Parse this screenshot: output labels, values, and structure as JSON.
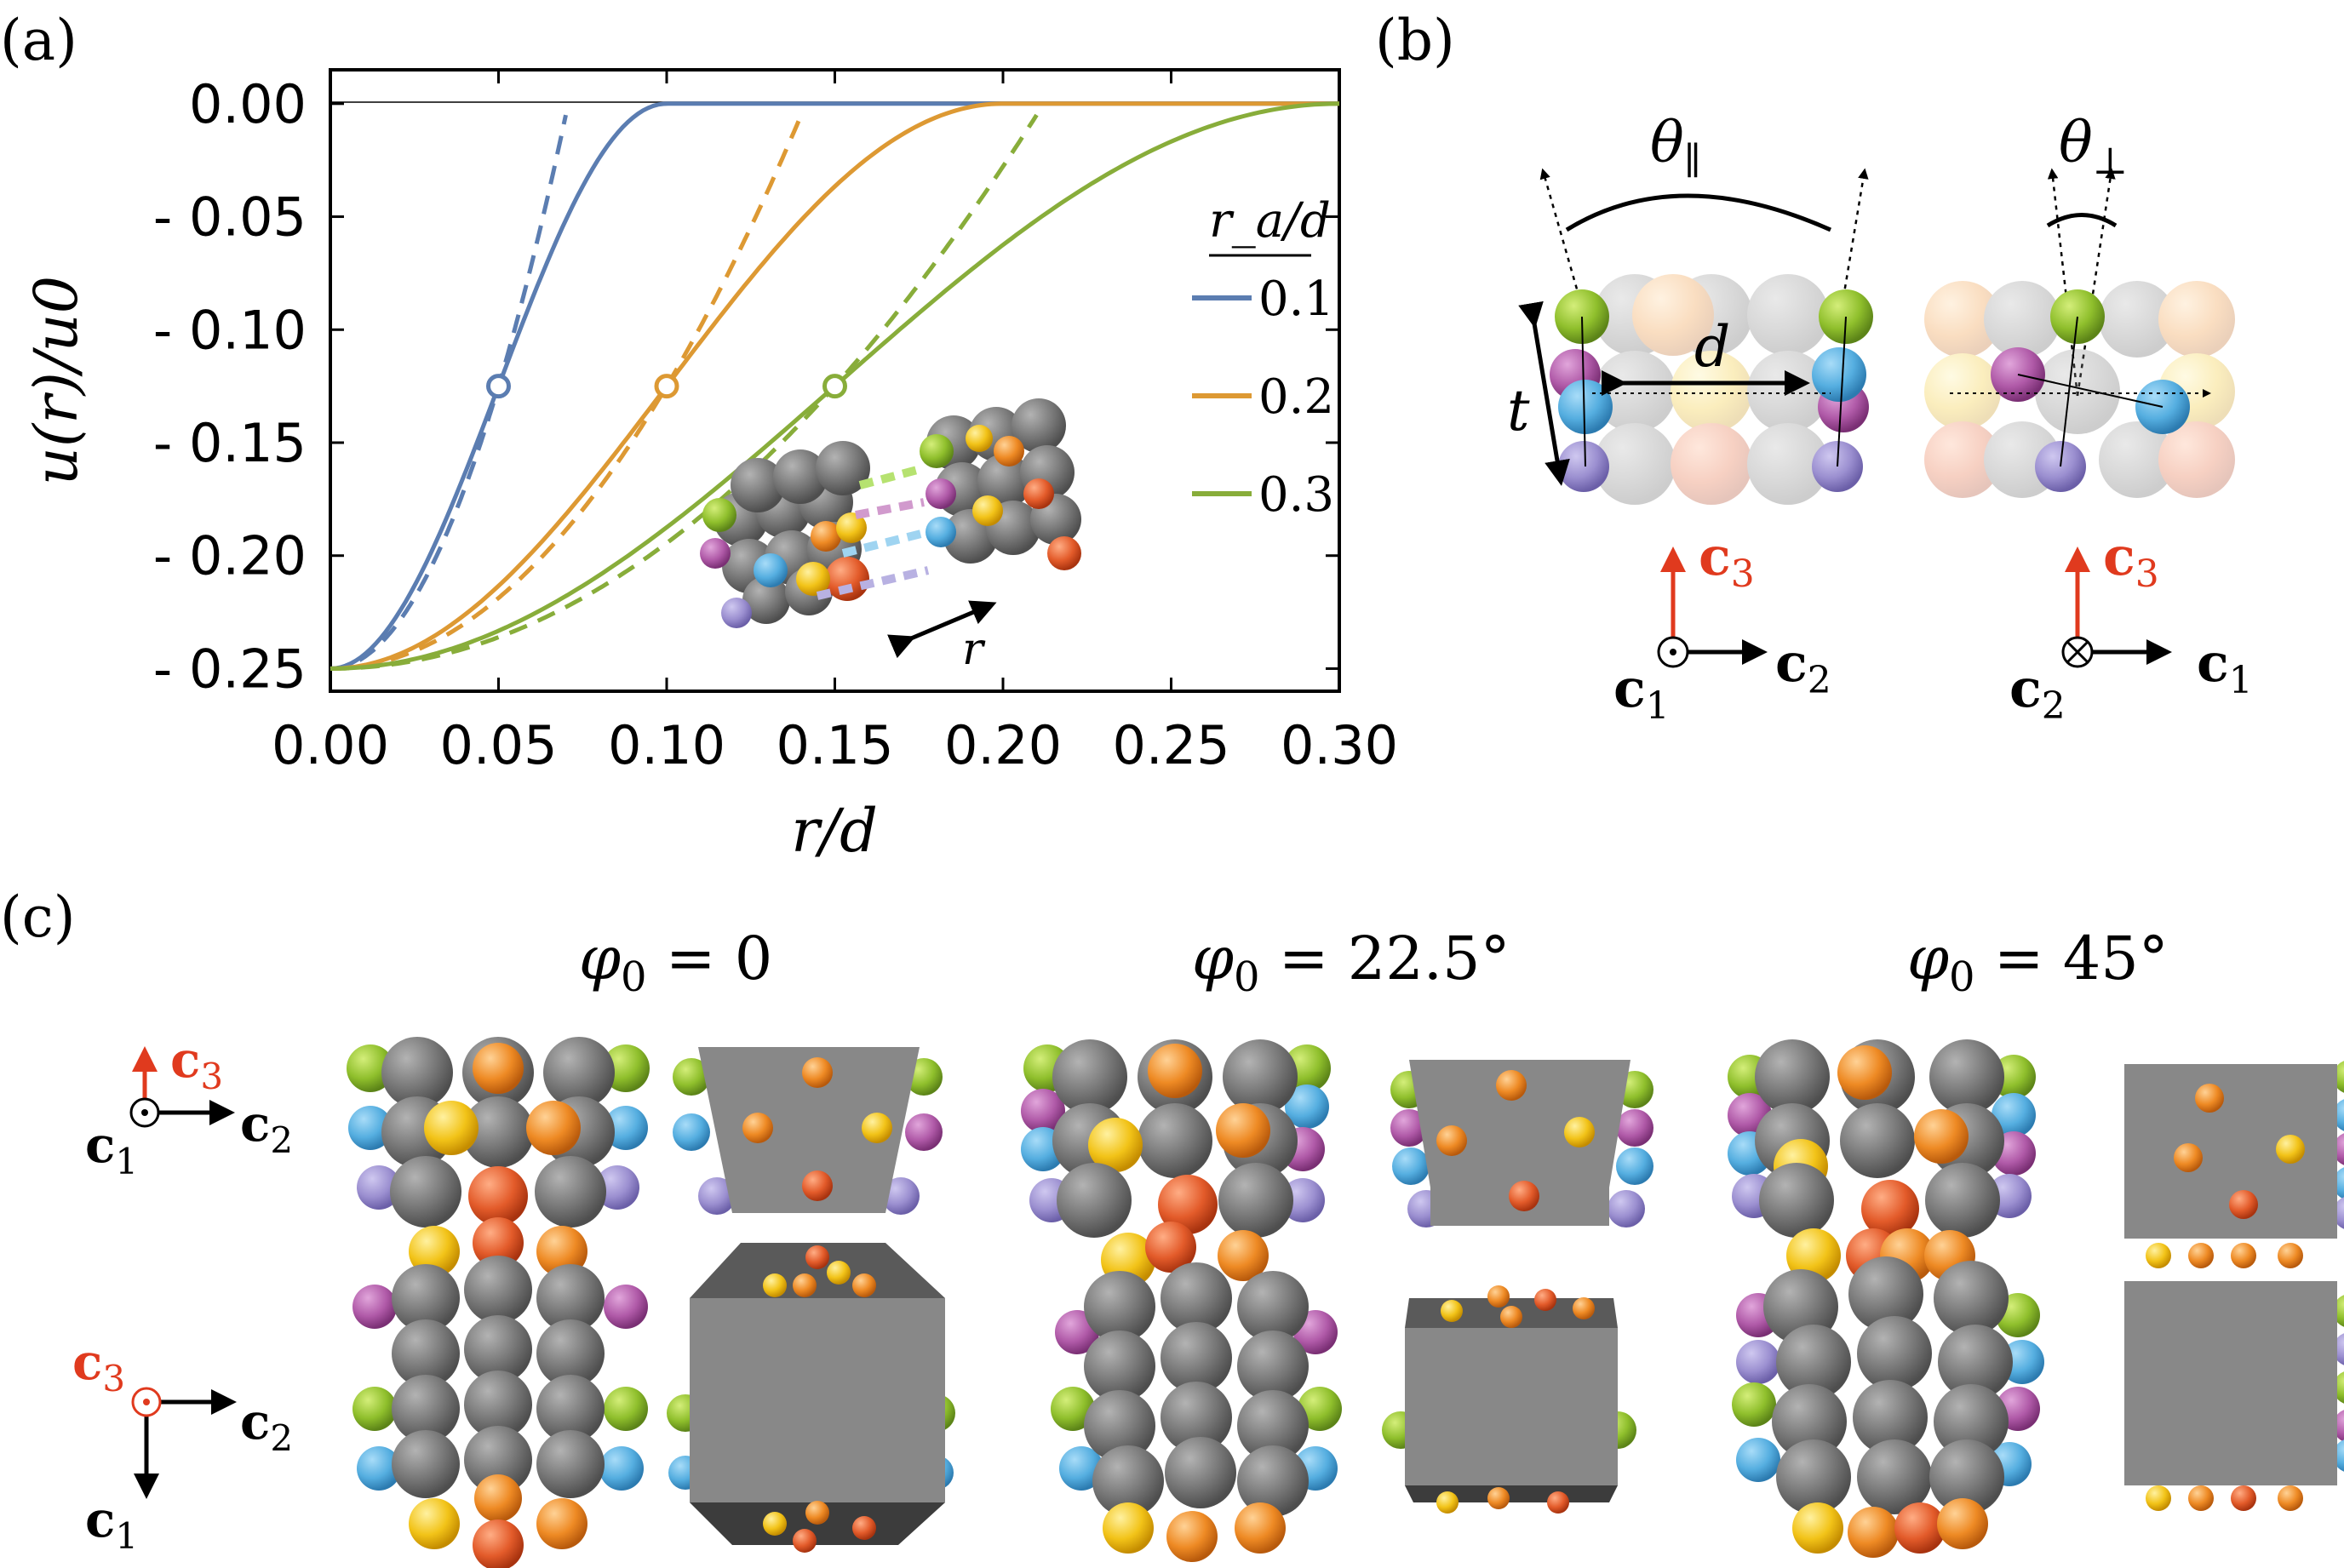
{
  "panels": {
    "a": "(a)",
    "b": "(b)",
    "c": "(c)"
  },
  "chart_data": {
    "type": "line",
    "xlabel": "r/d",
    "ylabel": "u(r)/u0",
    "xlim": [
      0.0,
      0.3
    ],
    "ylim": [
      -0.26,
      0.015
    ],
    "xticks": [
      "0.00",
      "0.05",
      "0.10",
      "0.15",
      "0.20",
      "0.25",
      "0.30"
    ],
    "yticks": [
      "0.00",
      "- 0.05",
      "- 0.10",
      "- 0.15",
      "- 0.20",
      "- 0.25"
    ],
    "legend_title": "r_a/d",
    "legend_placement": "right",
    "series": [
      {
        "name": "0.1",
        "color": "#5b7db1",
        "ra": 0.1,
        "marker_x": 0.05,
        "marker_y": -0.125
      },
      {
        "name": "0.2",
        "color": "#dd9933",
        "ra": 0.2,
        "marker_x": 0.1,
        "marker_y": -0.125
      },
      {
        "name": "0.3",
        "color": "#88ad3a",
        "ra": 0.3,
        "marker_x": 0.15,
        "marker_y": -0.125
      }
    ],
    "solid_curve": "u = -0.25*cos^2(pi*r/(2*ra)) for r<ra, else 0",
    "dashed_curve": "u = -0.25 + 0.125*(r/(ra/2))^2",
    "inset_label": "r"
  },
  "panel_b": {
    "theta_par": "θ",
    "theta_par_sub": "∥",
    "theta_perp": "θ",
    "theta_perp_sub": "⊥",
    "d_label": "d",
    "t_label": "t",
    "axes_left": {
      "up": "c",
      "up_sub": "3",
      "right": "c",
      "right_sub": "2",
      "out": "c",
      "out_sub": "1"
    },
    "axes_right": {
      "up": "c",
      "up_sub": "3",
      "right": "c",
      "right_sub": "1",
      "in": "c",
      "in_sub": "2"
    }
  },
  "panel_c": {
    "phis": [
      {
        "lhs": "φ",
        "sub": "0",
        "rhs": " = 0"
      },
      {
        "lhs": "φ",
        "sub": "0",
        "rhs": " = 22.5°"
      },
      {
        "lhs": "φ",
        "sub": "0",
        "rhs": " = 45°"
      }
    ],
    "axes_top": {
      "up": "c",
      "up_sub": "3",
      "right": "c",
      "right_sub": "2",
      "out": "c",
      "out_sub": "1"
    },
    "axes_bottom": {
      "out": "c",
      "out_sub": "3",
      "right": "c",
      "right_sub": "2",
      "down": "c",
      "down_sub": "1"
    }
  },
  "colors": {
    "gray": "#777777",
    "green": "#8fbf2c",
    "blue": "#55aee0",
    "purple": "#9b8fd0",
    "magenta": "#b05aa8",
    "yellow": "#f2c318",
    "orange": "#ee8a24",
    "red": "#e35b2a",
    "accent_red": "#e03a1e"
  }
}
